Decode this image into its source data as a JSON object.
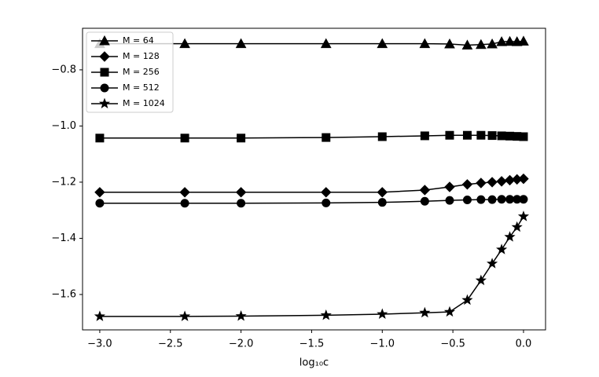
{
  "chart_data": {
    "type": "line",
    "x_label": "log₁₀c",
    "x": [
      -3,
      -2.398,
      -2,
      -1.398,
      -1,
      -0.699,
      -0.523,
      -0.398,
      -0.301,
      -0.222,
      -0.155,
      -0.097,
      -0.046,
      0
    ],
    "series": [
      {
        "name": "M = 64",
        "marker": "triangle",
        "color": "#000000",
        "values": [
          -0.707,
          -0.707,
          -0.707,
          -0.707,
          -0.707,
          -0.707,
          -0.708,
          -0.712,
          -0.71,
          -0.708,
          -0.7,
          -0.699,
          -0.7,
          -0.698
        ]
      },
      {
        "name": "M = 128",
        "marker": "diamond",
        "color": "#000000",
        "values": [
          -1.236,
          -1.236,
          -1.236,
          -1.236,
          -1.236,
          -1.228,
          -1.217,
          -1.208,
          -1.203,
          -1.2,
          -1.197,
          -1.193,
          -1.19,
          -1.188
        ]
      },
      {
        "name": "M = 256",
        "marker": "square",
        "color": "#000000",
        "values": [
          -1.043,
          -1.043,
          -1.043,
          -1.041,
          -1.038,
          -1.035,
          -1.033,
          -1.033,
          -1.033,
          -1.034,
          -1.035,
          -1.036,
          -1.037,
          -1.038
        ]
      },
      {
        "name": "M = 512",
        "marker": "circle",
        "color": "#000000",
        "values": [
          -1.275,
          -1.275,
          -1.275,
          -1.274,
          -1.272,
          -1.268,
          -1.265,
          -1.263,
          -1.262,
          -1.262,
          -1.261,
          -1.261,
          -1.261,
          -1.261
        ]
      },
      {
        "name": "M = 1024",
        "marker": "star",
        "color": "#000000",
        "values": [
          -1.678,
          -1.678,
          -1.677,
          -1.674,
          -1.67,
          -1.665,
          -1.662,
          -1.62,
          -1.55,
          -1.49,
          -1.44,
          -1.395,
          -1.36,
          -1.322
        ]
      }
    ],
    "xlim": [
      -3.122,
      0.156
    ],
    "ylim": [
      -1.726,
      -0.652
    ],
    "xticks": [
      {
        "value": -3,
        "label": "−3.0"
      },
      {
        "value": -2.5,
        "label": "−2.5"
      },
      {
        "value": -2,
        "label": "−2.0"
      },
      {
        "value": -1.5,
        "label": "−1.5"
      },
      {
        "value": -1,
        "label": "−1.0"
      },
      {
        "value": -0.5,
        "label": "−0.5"
      },
      {
        "value": 0,
        "label": "0.0"
      }
    ],
    "yticks": [
      {
        "value": -1.6,
        "label": "−1.6"
      },
      {
        "value": -1.4,
        "label": "−1.4"
      },
      {
        "value": -1.2,
        "label": "−1.2"
      },
      {
        "value": -1.0,
        "label": "−1.0"
      },
      {
        "value": -0.8,
        "label": "−0.8"
      }
    ],
    "legend": "upper left",
    "grid": false
  }
}
